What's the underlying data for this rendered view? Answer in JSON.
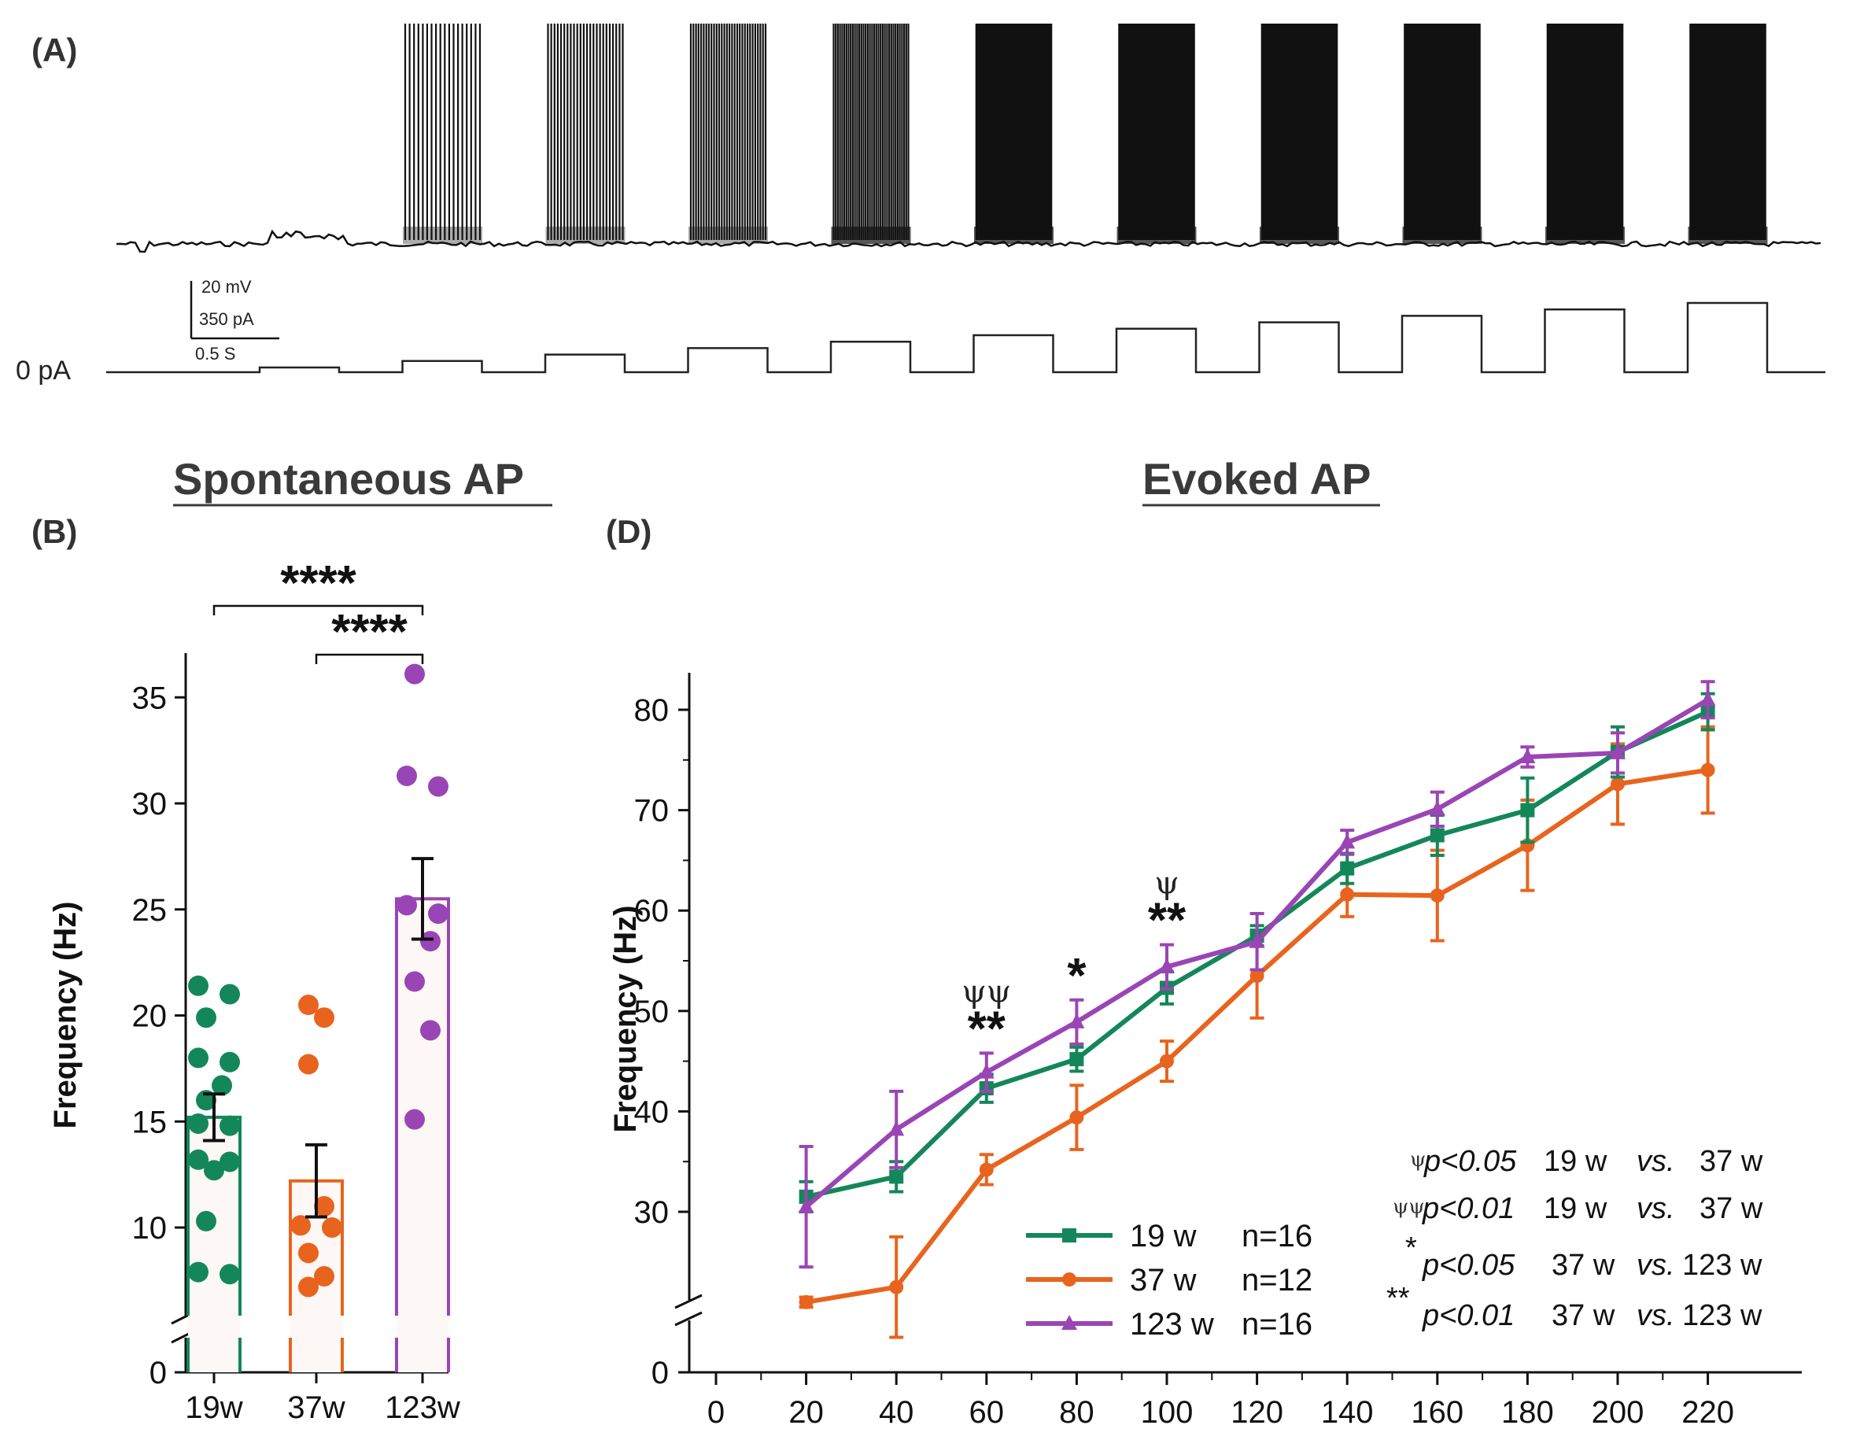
{
  "panel_a": {
    "label": "(A)",
    "scale_bar": {
      "voltage": "20 mV",
      "current": "350 pA",
      "time": "0.5 S"
    },
    "zero_label": "0 pA"
  },
  "panel_b": {
    "label": "(B)",
    "section_title": "Spontaneous AP"
  },
  "panel_d": {
    "label": "(D)",
    "section_title": "Evoked AP"
  },
  "chart_data": [
    {
      "type": "bar",
      "title": "Spontaneous AP",
      "ylabel": "Frequency (Hz)",
      "xlabel": "",
      "categories": [
        "19w",
        "37w",
        "123w"
      ],
      "colors": [
        "#14875a",
        "#e8641e",
        "#9a45b5"
      ],
      "values": [
        15.2,
        12.2,
        25.5
      ],
      "errors": [
        1.1,
        1.7,
        1.9
      ],
      "points": [
        [
          21.4,
          21.0,
          19.9,
          18.0,
          17.8,
          16.7,
          16.0,
          14.9,
          14.8,
          13.2,
          13.1,
          12.7,
          10.3,
          7.9,
          7.8
        ],
        [
          20.5,
          19.9,
          17.7,
          11.0,
          10.1,
          10.0,
          8.8,
          7.7,
          7.2
        ],
        [
          36.1,
          31.3,
          30.8,
          25.2,
          24.8,
          23.5,
          21.6,
          19.3,
          15.1
        ]
      ],
      "yticks": [
        0,
        10,
        15,
        20,
        25,
        30,
        35
      ],
      "ylim": [
        0,
        37
      ],
      "axis_break": true,
      "significance": [
        {
          "from": "19w",
          "to": "123w",
          "label": "****"
        },
        {
          "from": "37w",
          "to": "123w",
          "label": "****"
        }
      ]
    },
    {
      "type": "line",
      "title": "Evoked AP",
      "ylabel": "Frequency (Hz)",
      "xlabel": "",
      "x": [
        20,
        40,
        60,
        80,
        100,
        120,
        140,
        160,
        180,
        200,
        220
      ],
      "xticks": [
        0,
        20,
        40,
        60,
        80,
        100,
        120,
        140,
        160,
        180,
        200,
        220
      ],
      "yticks": [
        0,
        30,
        40,
        50,
        60,
        70,
        80
      ],
      "xlim": [
        0,
        220
      ],
      "ylim": [
        0,
        85
      ],
      "axis_break": true,
      "series": [
        {
          "name": "19 w",
          "n_label": "n=16",
          "color": "#14875a",
          "marker": "square",
          "values": [
            31.5,
            33.5,
            42.3,
            45.2,
            52.3,
            57.5,
            64.2,
            67.5,
            70.0,
            75.8,
            79.8
          ],
          "errors": [
            1.5,
            1.5,
            1.4,
            1.2,
            1.6,
            1.0,
            1.5,
            2.0,
            3.2,
            2.5,
            1.8
          ]
        },
        {
          "name": "37 w",
          "n_label": "n=12",
          "color": "#e8641e",
          "marker": "circle",
          "values": [
            21.0,
            22.5,
            34.2,
            39.4,
            45.0,
            53.5,
            61.6,
            61.5,
            66.5,
            72.6,
            74.0
          ],
          "errors": [
            0.5,
            5.0,
            1.5,
            3.2,
            2.0,
            4.2,
            2.2,
            4.5,
            4.5,
            4.0,
            4.3
          ]
        },
        {
          "name": "123 w",
          "n_label": "n=16",
          "color": "#9a45b5",
          "marker": "triangle",
          "values": [
            30.5,
            38.2,
            43.9,
            48.9,
            54.4,
            56.9,
            66.8,
            70.1,
            75.3,
            75.7,
            81.0
          ],
          "errors": [
            6.0,
            3.8,
            1.9,
            2.2,
            2.2,
            2.8,
            1.2,
            1.7,
            1.0,
            2.0,
            1.8
          ]
        }
      ],
      "annotations": [
        {
          "x": 60,
          "psi": "ψψ",
          "stars": "**"
        },
        {
          "x": 80,
          "psi": "",
          "stars": "*"
        },
        {
          "x": 100,
          "psi": "ψ",
          "stars": "**"
        }
      ],
      "notes": [
        {
          "sym": "ψ",
          "p": "p<0.05",
          "a": "19 w",
          "vs": "vs.",
          "b": "37 w"
        },
        {
          "sym": "ψψ",
          "p": "p<0.01",
          "a": "19 w",
          "vs": "vs.",
          "b": "37 w"
        },
        {
          "sym": "*",
          "p": "p<0.05",
          "a": "37 w",
          "vs": "vs.",
          "b": "123 w"
        },
        {
          "sym": "**",
          "p": "p<0.01",
          "a": "37 w",
          "vs": "vs.",
          "b": "123 w"
        }
      ]
    }
  ]
}
